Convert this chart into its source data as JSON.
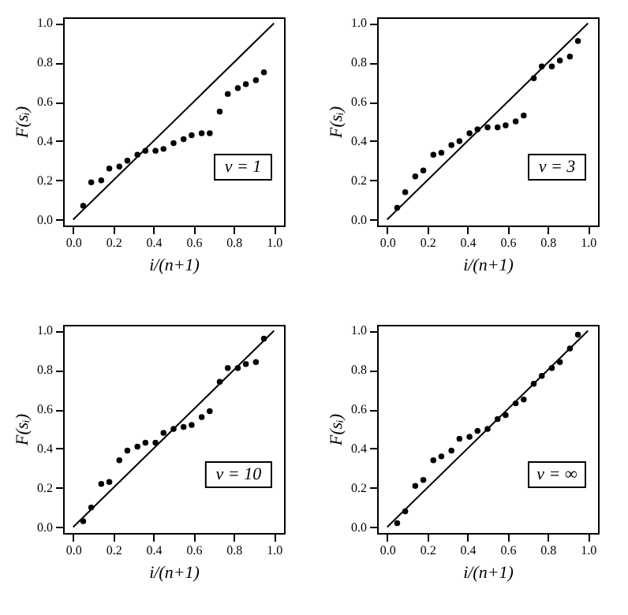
{
  "chart_data": [
    {
      "type": "scatter",
      "xlabel": "i/(n+1)",
      "ylabel": "F(sᵢ)",
      "annotations": [
        "ν = 1"
      ],
      "xlim": [
        -0.05,
        1.05
      ],
      "ylim": [
        -0.03,
        1.03
      ],
      "xticks": [
        {
          "value": 0,
          "label": "0.0"
        },
        {
          "value": 0.2,
          "label": "0.2"
        },
        {
          "value": 0.4,
          "label": "0.4"
        },
        {
          "value": 0.6,
          "label": "0.6"
        },
        {
          "value": 0.8,
          "label": "0.8"
        },
        {
          "value": 1,
          "label": "1.0"
        }
      ],
      "yticks": [
        {
          "value": 0,
          "label": "0.0"
        },
        {
          "value": 0.2,
          "label": "0.2"
        },
        {
          "value": 0.4,
          "label": "0.4"
        },
        {
          "value": 0.6,
          "label": "0.6"
        },
        {
          "value": 0.8,
          "label": "0.8"
        },
        {
          "value": 1,
          "label": "1.0"
        }
      ],
      "series": [
        {
          "type": "scatter",
          "color": "#000000",
          "marker": "circle",
          "x": [
            0.05,
            0.09,
            0.14,
            0.18,
            0.23,
            0.27,
            0.32,
            0.36,
            0.41,
            0.45,
            0.5,
            0.55,
            0.59,
            0.64,
            0.68,
            0.73,
            0.77,
            0.82,
            0.86,
            0.91,
            0.95
          ],
          "values": [
            0.07,
            0.19,
            0.2,
            0.26,
            0.27,
            0.3,
            0.33,
            0.35,
            0.35,
            0.36,
            0.39,
            0.41,
            0.43,
            0.44,
            0.44,
            0.55,
            0.64,
            0.67,
            0.69,
            0.71,
            0.75
          ]
        },
        {
          "type": "line",
          "color": "#000000",
          "x": [
            0,
            1
          ],
          "values": [
            0,
            1
          ]
        }
      ]
    },
    {
      "type": "scatter",
      "xlabel": "i/(n+1)",
      "ylabel": "F(sᵢ)",
      "annotations": [
        "ν = 3"
      ],
      "xlim": [
        -0.05,
        1.05
      ],
      "ylim": [
        -0.03,
        1.03
      ],
      "xticks": [
        {
          "value": 0,
          "label": "0.0"
        },
        {
          "value": 0.2,
          "label": "0.2"
        },
        {
          "value": 0.4,
          "label": "0.4"
        },
        {
          "value": 0.6,
          "label": "0.6"
        },
        {
          "value": 0.8,
          "label": "0.8"
        },
        {
          "value": 1,
          "label": "1.0"
        }
      ],
      "yticks": [
        {
          "value": 0,
          "label": "0.0"
        },
        {
          "value": 0.2,
          "label": "0.2"
        },
        {
          "value": 0.4,
          "label": "0.4"
        },
        {
          "value": 0.6,
          "label": "0.6"
        },
        {
          "value": 0.8,
          "label": "0.8"
        },
        {
          "value": 1,
          "label": "1.0"
        }
      ],
      "series": [
        {
          "type": "scatter",
          "color": "#000000",
          "marker": "circle",
          "x": [
            0.05,
            0.09,
            0.14,
            0.18,
            0.23,
            0.27,
            0.32,
            0.36,
            0.41,
            0.45,
            0.5,
            0.55,
            0.59,
            0.64,
            0.68,
            0.73,
            0.77,
            0.82,
            0.86,
            0.91,
            0.95
          ],
          "values": [
            0.06,
            0.14,
            0.22,
            0.25,
            0.33,
            0.34,
            0.38,
            0.4,
            0.44,
            0.46,
            0.47,
            0.47,
            0.48,
            0.5,
            0.53,
            0.72,
            0.78,
            0.78,
            0.81,
            0.83,
            0.91
          ]
        },
        {
          "type": "line",
          "color": "#000000",
          "x": [
            0,
            1
          ],
          "values": [
            0,
            1
          ]
        }
      ]
    },
    {
      "type": "scatter",
      "xlabel": "i/(n+1)",
      "ylabel": "F(sᵢ)",
      "annotations": [
        "ν = 10"
      ],
      "xlim": [
        -0.05,
        1.05
      ],
      "ylim": [
        -0.03,
        1.03
      ],
      "xticks": [
        {
          "value": 0,
          "label": "0.0"
        },
        {
          "value": 0.2,
          "label": "0.2"
        },
        {
          "value": 0.4,
          "label": "0.4"
        },
        {
          "value": 0.6,
          "label": "0.6"
        },
        {
          "value": 0.8,
          "label": "0.8"
        },
        {
          "value": 1,
          "label": "1.0"
        }
      ],
      "yticks": [
        {
          "value": 0,
          "label": "0.0"
        },
        {
          "value": 0.2,
          "label": "0.2"
        },
        {
          "value": 0.4,
          "label": "0.4"
        },
        {
          "value": 0.6,
          "label": "0.6"
        },
        {
          "value": 0.8,
          "label": "0.8"
        },
        {
          "value": 1,
          "label": "1.0"
        }
      ],
      "series": [
        {
          "type": "scatter",
          "color": "#000000",
          "marker": "circle",
          "x": [
            0.05,
            0.09,
            0.14,
            0.18,
            0.23,
            0.27,
            0.32,
            0.36,
            0.41,
            0.45,
            0.5,
            0.55,
            0.59,
            0.64,
            0.68,
            0.73,
            0.77,
            0.82,
            0.86,
            0.91,
            0.95
          ],
          "values": [
            0.03,
            0.1,
            0.22,
            0.23,
            0.34,
            0.39,
            0.41,
            0.43,
            0.43,
            0.48,
            0.5,
            0.51,
            0.52,
            0.56,
            0.59,
            0.74,
            0.81,
            0.81,
            0.83,
            0.84,
            0.96
          ]
        },
        {
          "type": "line",
          "color": "#000000",
          "x": [
            0,
            1
          ],
          "values": [
            0,
            1
          ]
        }
      ]
    },
    {
      "type": "scatter",
      "xlabel": "i/(n+1)",
      "ylabel": "F(sᵢ)",
      "annotations": [
        "ν = ∞"
      ],
      "xlim": [
        -0.05,
        1.05
      ],
      "ylim": [
        -0.03,
        1.03
      ],
      "xticks": [
        {
          "value": 0,
          "label": "0.0"
        },
        {
          "value": 0.2,
          "label": "0.2"
        },
        {
          "value": 0.4,
          "label": "0.4"
        },
        {
          "value": 0.6,
          "label": "0.6"
        },
        {
          "value": 0.8,
          "label": "0.8"
        },
        {
          "value": 1,
          "label": "1.0"
        }
      ],
      "yticks": [
        {
          "value": 0,
          "label": "0.0"
        },
        {
          "value": 0.2,
          "label": "0.2"
        },
        {
          "value": 0.4,
          "label": "0.4"
        },
        {
          "value": 0.6,
          "label": "0.6"
        },
        {
          "value": 0.8,
          "label": "0.8"
        },
        {
          "value": 1,
          "label": "1.0"
        }
      ],
      "series": [
        {
          "type": "scatter",
          "color": "#000000",
          "marker": "circle",
          "x": [
            0.05,
            0.09,
            0.14,
            0.18,
            0.23,
            0.27,
            0.32,
            0.36,
            0.41,
            0.45,
            0.5,
            0.55,
            0.59,
            0.64,
            0.68,
            0.73,
            0.77,
            0.82,
            0.86,
            0.91,
            0.95
          ],
          "values": [
            0.02,
            0.08,
            0.21,
            0.24,
            0.34,
            0.36,
            0.39,
            0.45,
            0.46,
            0.49,
            0.5,
            0.55,
            0.57,
            0.63,
            0.65,
            0.73,
            0.77,
            0.81,
            0.84,
            0.91,
            0.98
          ]
        },
        {
          "type": "line",
          "color": "#000000",
          "x": [
            0,
            1
          ],
          "values": [
            0,
            1
          ]
        }
      ]
    }
  ]
}
